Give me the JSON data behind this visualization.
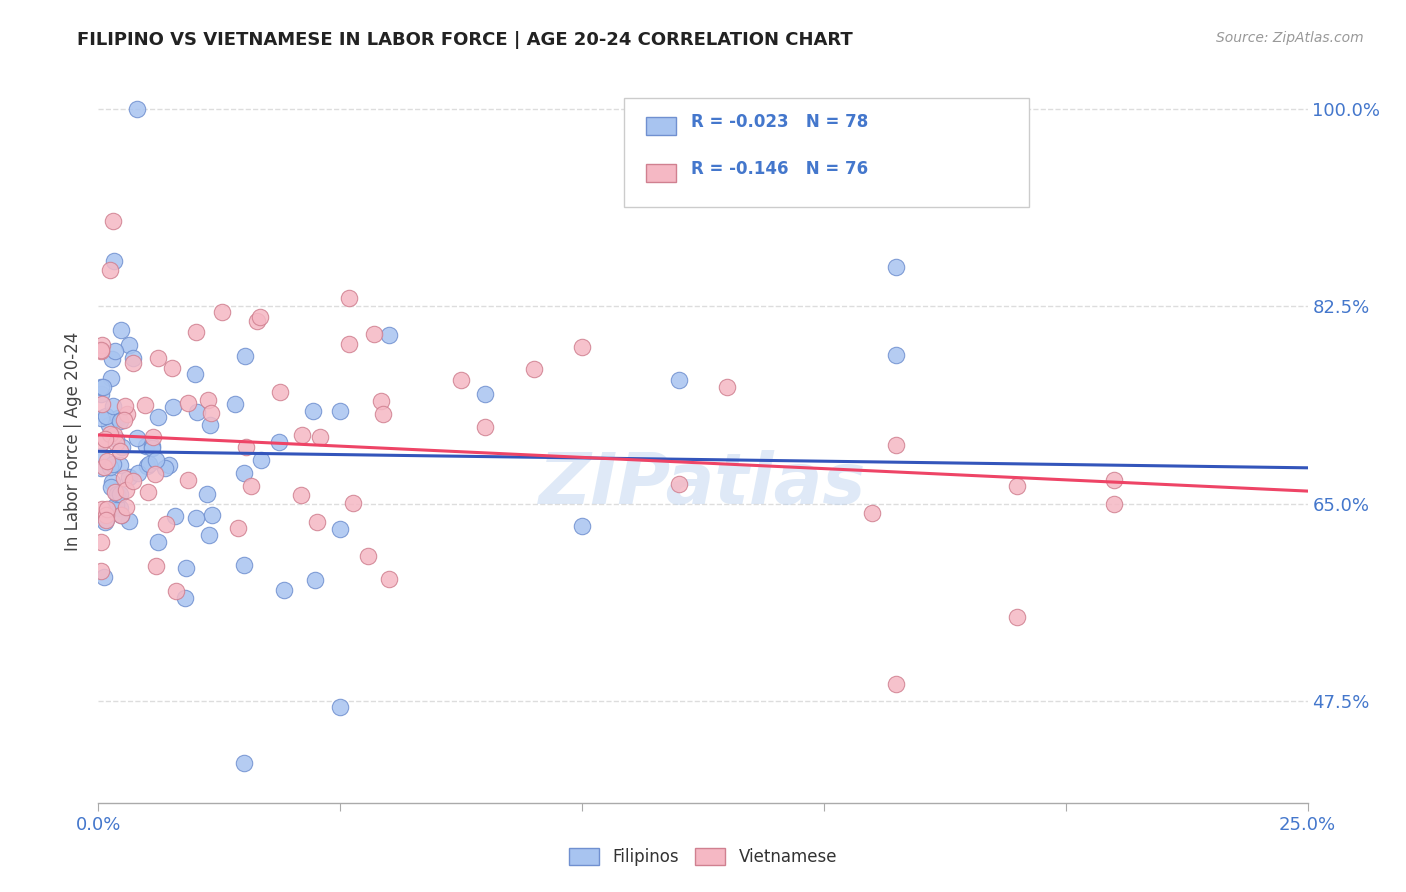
{
  "title": "FILIPINO VS VIETNAMESE IN LABOR FORCE | AGE 20-24 CORRELATION CHART",
  "source": "Source: ZipAtlas.com",
  "ylabel_ticks": [
    "100.0%",
    "82.5%",
    "65.0%",
    "47.5%"
  ],
  "ylabel_label": "In Labor Force | Age 20-24",
  "legend_labels": [
    "Filipinos",
    "Vietnamese"
  ],
  "r_filipino": -0.023,
  "n_filipino": 78,
  "r_vietnamese": -0.146,
  "n_vietnamese": 76,
  "filipino_color": "#a8c4f0",
  "vietnamese_color": "#f5b8c4",
  "filipino_edge": "#7090d0",
  "vietnamese_edge": "#d08090",
  "trendline_filipino_color": "#3355bb",
  "trendline_vietnamese_color": "#ee4466",
  "watermark": "ZIPatlas",
  "xlim": [
    0.0,
    0.25
  ],
  "ylim": [
    0.385,
    1.025
  ],
  "ytick_positions": [
    1.0,
    0.825,
    0.65,
    0.475
  ],
  "xtick_positions": [
    0.0,
    0.05,
    0.1,
    0.15,
    0.2,
    0.25
  ],
  "grid_color": "#dddddd",
  "axis_color": "#aaaaaa",
  "label_color": "#4477cc",
  "seed_fil": 77,
  "seed_vie": 99
}
